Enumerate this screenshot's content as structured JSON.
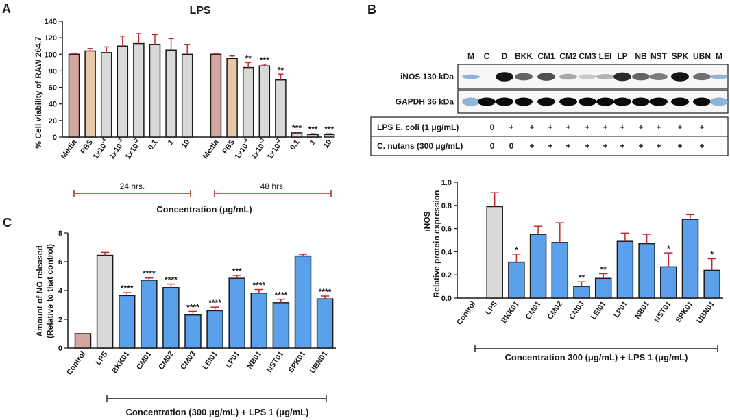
{
  "panels": {
    "a": "A",
    "b": "B",
    "c": "C"
  },
  "chart_data": [
    {
      "id": "A",
      "type": "bar",
      "title": "LPS",
      "ylabel": "% Cell viability of RAW 264.7",
      "xlabel": "Concentration (μg/mL)",
      "ylim": [
        0,
        140
      ],
      "yticks": [
        0,
        20,
        40,
        60,
        80,
        100,
        120,
        140
      ],
      "group_labels": [
        "24 hrs.",
        "48 hrs."
      ],
      "groups": [
        {
          "name": "24 hrs.",
          "categories": [
            "Media",
            "PBS",
            "1x10-4",
            "1x10-3",
            "1x10-2",
            "0.1",
            "1",
            "10"
          ],
          "values": [
            100,
            104,
            102,
            110,
            113,
            112,
            105,
            100
          ],
          "errors": [
            0.5,
            3,
            7,
            12,
            12,
            12,
            14,
            12
          ],
          "significance": [
            "",
            "",
            "",
            "",
            "",
            "",
            "",
            ""
          ]
        },
        {
          "name": "48 hrs.",
          "categories": [
            "Media",
            "PBS",
            "1x10-4",
            "1x10-3",
            "1x10-2",
            "0.1",
            "1",
            "10"
          ],
          "values": [
            100,
            95,
            84,
            86,
            69,
            5,
            3,
            3
          ],
          "errors": [
            0.5,
            3,
            6,
            2,
            7,
            1,
            1,
            1
          ],
          "significance": [
            "",
            "",
            "**",
            "***",
            "**",
            "***",
            "***",
            "***"
          ]
        }
      ]
    },
    {
      "id": "B",
      "type": "bar",
      "ylabel": "iNOS Relative protein expression",
      "xlabel": "Concentration 300 (μg/mL) + LPS 1 (μg/mL)",
      "ylim": [
        0,
        1.0
      ],
      "yticks": [
        "0.0",
        "0.2",
        "0.4",
        "0.6",
        "0.8",
        "1.0"
      ],
      "categories": [
        "Control",
        "LPS",
        "BKK01",
        "CM01",
        "CM02",
        "CM03",
        "LEI01",
        "LP01",
        "NB01",
        "NST01",
        "SPK01",
        "UBN01"
      ],
      "values": [
        0,
        0.79,
        0.31,
        0.55,
        0.48,
        0.1,
        0.17,
        0.49,
        0.47,
        0.27,
        0.68,
        0.24
      ],
      "errors": [
        0,
        0.12,
        0.07,
        0.07,
        0.17,
        0.04,
        0.04,
        0.07,
        0.08,
        0.12,
        0.04,
        0.1
      ],
      "significance": [
        "",
        "",
        "*",
        "",
        "",
        "**",
        "**",
        "",
        "",
        "*",
        "",
        "*"
      ]
    },
    {
      "id": "C",
      "type": "bar",
      "ylabel": "Amount of NO released (Relative to that control)",
      "xlabel": "Concentration (300 μg/mL) + LPS 1 (μg/mL)",
      "ylim": [
        0,
        8
      ],
      "yticks": [
        0,
        2,
        4,
        6,
        8
      ],
      "categories": [
        "Control",
        "LPS",
        "BKK01",
        "CM01",
        "CM02",
        "CM03",
        "LEI01",
        "LP01",
        "NB01",
        "NST01",
        "SPK01",
        "UBN01"
      ],
      "values": [
        1.0,
        6.45,
        3.65,
        4.72,
        4.2,
        2.3,
        2.6,
        4.85,
        3.82,
        3.15,
        6.4,
        3.42
      ],
      "errors": [
        0,
        0.2,
        0.2,
        0.15,
        0.25,
        0.25,
        0.25,
        0.2,
        0.25,
        0.25,
        0.12,
        0.2
      ],
      "significance": [
        "",
        "",
        "****",
        "****",
        "****",
        "****",
        "****",
        "***",
        "****",
        "****",
        "",
        "****"
      ]
    }
  ],
  "blot": {
    "lanes": [
      "M",
      "C",
      "D",
      "BKK",
      "CM1",
      "CM2",
      "CM3",
      "LEI",
      "LP",
      "NB",
      "NST",
      "SPK",
      "UBN",
      "M"
    ],
    "bands": [
      {
        "label": "iNOS 130 kDa",
        "intensity": [
          0.1,
          0,
          0.95,
          0.6,
          0.7,
          0.3,
          0.15,
          0.25,
          0.85,
          0.6,
          0.5,
          0.95,
          0.55,
          0.1
        ]
      },
      {
        "label": "GAPDH 36 kDa",
        "intensity": [
          0.3,
          1,
          1,
          1,
          1,
          1,
          1,
          1,
          1,
          1,
          1,
          1,
          1,
          0.3
        ]
      }
    ],
    "treatments": [
      {
        "label": "LPS E. coli (1 μg/mL)",
        "marks": [
          "0",
          "+",
          "+",
          "+",
          "+",
          "+",
          "+",
          "+",
          "+",
          "+",
          "+",
          "+"
        ]
      },
      {
        "label": "C. nutans (300 μg/mL)",
        "marks": [
          "0",
          "0",
          "+",
          "+",
          "+",
          "+",
          "+",
          "+",
          "+",
          "+",
          "+",
          "+"
        ]
      }
    ]
  },
  "colors": {
    "media": "#d4a6a1",
    "pbs": "#e6c8a6",
    "grey": "#d9d9d9",
    "blue": "#5aa0ea",
    "control": "#d4a6a1",
    "error": "#c0282d",
    "bracket": "#b22222",
    "ink": "#1a1a1a"
  }
}
